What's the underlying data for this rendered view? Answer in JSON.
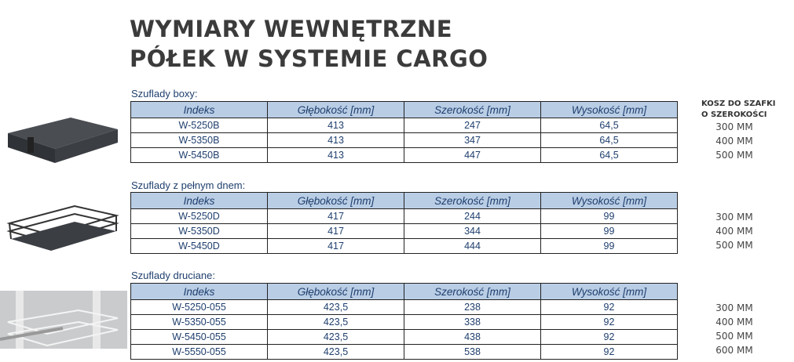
{
  "title": {
    "line1": "WYMIARY WEWNĘTRZNE",
    "line2": "PÓŁEK W SYSTEMIE CARGO"
  },
  "side_heading": {
    "line1": "KOSZ DO SZAFKI",
    "line2": "O SZEROKOŚCI"
  },
  "columns": [
    "Indeks",
    "Głębokość [mm]",
    "Szerokość [mm]",
    "Wysokość [mm]"
  ],
  "sections": [
    {
      "caption": "Szuflady boxy:",
      "rows": [
        [
          "W-5250B",
          "413",
          "247",
          "64,5"
        ],
        [
          "W-5350B",
          "413",
          "347",
          "64,5"
        ],
        [
          "W-5450B",
          "413",
          "447",
          "64,5"
        ]
      ],
      "sizes": [
        "300 MM",
        "400 MM",
        "500 MM"
      ]
    },
    {
      "caption": "Szuflady z pełnym dnem:",
      "rows": [
        [
          "W-5250D",
          "417",
          "244",
          "99"
        ],
        [
          "W-5350D",
          "417",
          "344",
          "99"
        ],
        [
          "W-5450D",
          "417",
          "444",
          "99"
        ]
      ],
      "sizes": [
        "300 MM",
        "400 MM",
        "500 MM"
      ]
    },
    {
      "caption": "Szuflady druciane:",
      "rows": [
        [
          "W-5250-055",
          "423,5",
          "238",
          "92"
        ],
        [
          "W-5350-055",
          "423,5",
          "338",
          "92"
        ],
        [
          "W-5450-055",
          "423,5",
          "438",
          "92"
        ],
        [
          "W-5550-055",
          "423,5",
          "538",
          "92"
        ]
      ],
      "sizes": [
        "300 MM",
        "400 MM",
        "500 MM",
        "600 MM"
      ]
    }
  ]
}
